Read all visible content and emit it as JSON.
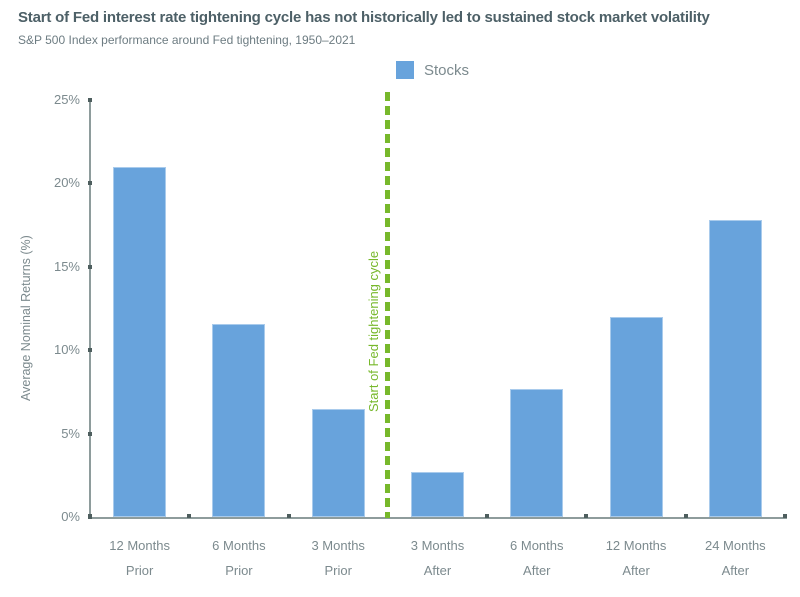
{
  "chart_data": {
    "type": "bar",
    "title": "Start of Fed interest rate tightening cycle has not historically led to sustained stock market volatility",
    "subtitle": "S&P 500 Index performance around Fed tightening, 1950–2021",
    "legend": [
      "Stocks"
    ],
    "legend_position": "top-center",
    "categories": [
      "12 Months Prior",
      "6 Months Prior",
      "3 Months Prior",
      "3 Months After",
      "6 Months After",
      "12 Months After",
      "24 Months After"
    ],
    "values": [
      21.0,
      11.6,
      6.5,
      2.7,
      7.7,
      12.0,
      17.8
    ],
    "xlabel": "",
    "ylabel": "Average Nominal Returns (%)",
    "ylim": [
      0,
      25
    ],
    "ytick_step": 5,
    "ytick_labels": [
      "0%",
      "5%",
      "10%",
      "15%",
      "20%",
      "25%"
    ],
    "grid": false,
    "annotation": {
      "label": "Start of Fed tightening cycle",
      "after_category_index": 2,
      "style": "vertical-dashed-line"
    },
    "colors": {
      "bar": "#68A3DC",
      "bar_edge": "#A9CBEC",
      "annotation": "#77B82B",
      "axis": "#8E9C9C",
      "tick": "#4E5E5E",
      "text": "#7C8A8E",
      "title": "#4D6067",
      "subtitle": "#6D7C82"
    }
  }
}
